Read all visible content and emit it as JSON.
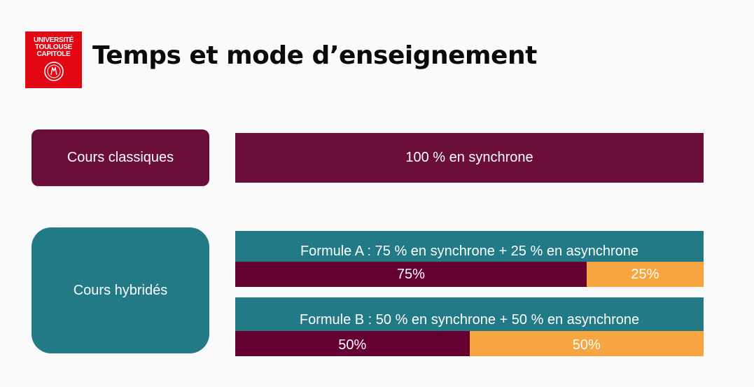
{
  "header": {
    "title": "Temps et mode d’enseignement",
    "logo": {
      "lines": [
        "UNIVERSITÉ",
        "TOULOUSE",
        "CAPITOLE"
      ],
      "icon": "university-seal-icon",
      "color": "#e30613"
    }
  },
  "rows": [
    {
      "label": "Cours classiques",
      "label_color": "#6b0e3a",
      "bar_text": "100 % en synchrone",
      "bar_color": "#6b0e3a"
    },
    {
      "label": "Cours hybridés",
      "label_color": "#217a86",
      "formulas": [
        {
          "title": "Formule A : 75 % en synchrone + 25 % en asynchrone",
          "title_color": "#217a86",
          "segments": [
            {
              "label": "75%",
              "value": 75,
              "color": "#650033"
            },
            {
              "label": "25%",
              "value": 25,
              "color": "#f7a541"
            }
          ]
        },
        {
          "title": "Formule B : 50 % en synchrone + 50 % en asynchrone",
          "title_color": "#217a86",
          "segments": [
            {
              "label": "50%",
              "value": 50,
              "color": "#650033"
            },
            {
              "label": "50%",
              "value": 50,
              "color": "#f7a541"
            }
          ]
        }
      ]
    }
  ]
}
